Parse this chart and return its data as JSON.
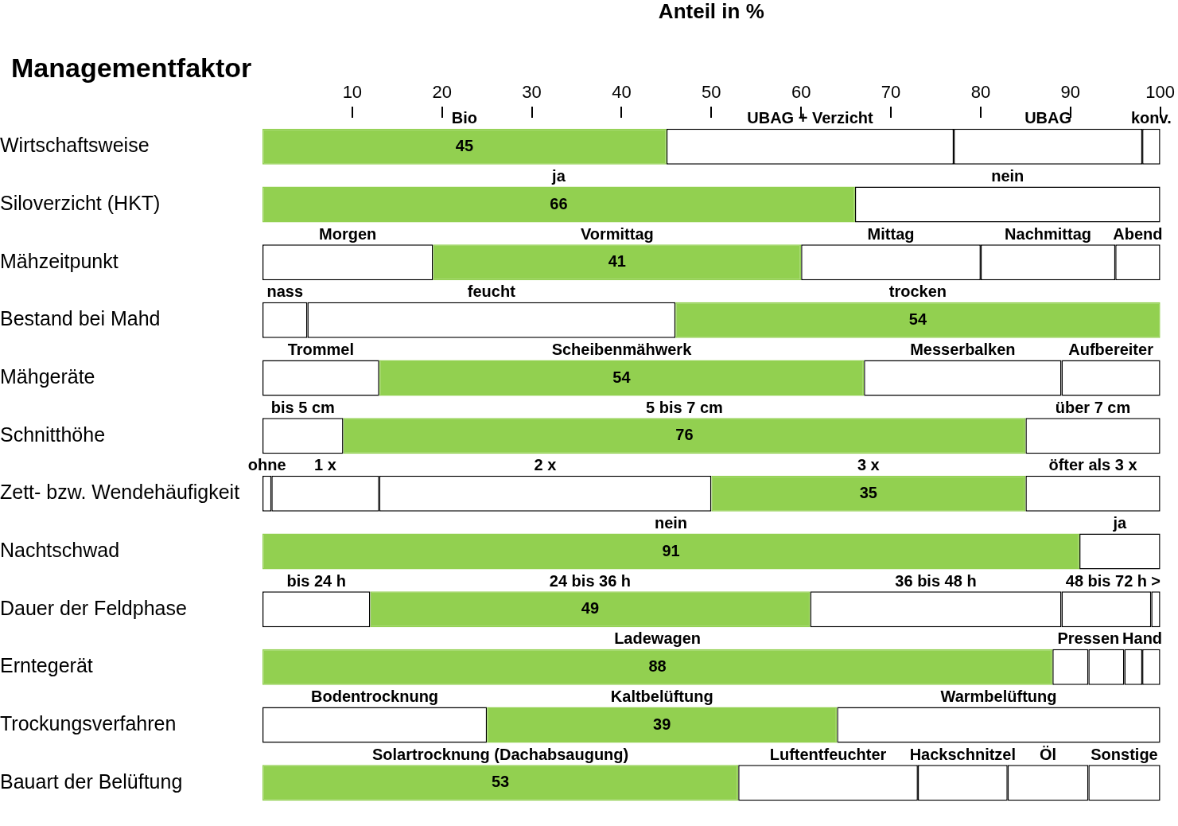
{
  "chart_data": {
    "type": "bar",
    "orientation": "horizontal",
    "stacked": true,
    "xlabel": "Anteil in %",
    "ylabel": "Managementfaktor",
    "categories": [
      "Wirtschaftsweise",
      "Siloverzicht (HKT)",
      "Mähzeitpunkt",
      "Bestand bei Mahd",
      "Mähgeräte",
      "Schnitthöhe",
      "Zett- bzw. Wendehäufigkeit",
      "Nachtschwad",
      "Dauer der Feldphase",
      "Erntegerät",
      "Trockungsverfahren",
      "Bauart der Belüftung"
    ],
    "xlim": [
      0,
      100
    ],
    "xticks": [
      10,
      20,
      30,
      40,
      50,
      60,
      70,
      80,
      90,
      100
    ],
    "series": [
      {
        "values": [
          45,
          66,
          19,
          5,
          13,
          9,
          1,
          91,
          12,
          88,
          25,
          53
        ],
        "colors": [
          "#92d050",
          "#92d050",
          "#ffffff",
          "#ffffff",
          "#ffffff",
          "#ffffff",
          "#ffffff",
          "#92d050",
          "#ffffff",
          "#92d050",
          "#ffffff",
          "#92d050"
        ],
        "value_labels": [
          "45",
          "66",
          null,
          null,
          null,
          null,
          null,
          "91",
          null,
          "88",
          null,
          "53"
        ]
      },
      {
        "values": [
          32,
          34,
          41,
          41,
          54,
          76,
          12,
          9,
          49,
          4,
          39,
          20
        ],
        "colors": [
          "#ffffff",
          "#ffffff",
          "#92d050",
          "#ffffff",
          "#92d050",
          "#92d050",
          "#ffffff",
          "#ffffff",
          "#92d050",
          "#ffffff",
          "#92d050",
          "#ffffff"
        ],
        "value_labels": [
          null,
          null,
          "41",
          null,
          "54",
          "76",
          null,
          null,
          "49",
          null,
          "39",
          null
        ]
      },
      {
        "values": [
          21,
          null,
          20,
          54,
          22,
          15,
          37,
          null,
          28,
          4,
          36,
          10
        ],
        "colors": [
          "#ffffff",
          null,
          "#ffffff",
          "#92d050",
          "#ffffff",
          "#ffffff",
          "#ffffff",
          null,
          "#ffffff",
          "#ffffff",
          "#ffffff",
          "#ffffff"
        ],
        "value_labels": [
          null,
          null,
          null,
          "54",
          null,
          null,
          null,
          null,
          null,
          null,
          null,
          null
        ]
      },
      {
        "values": [
          2,
          null,
          15,
          null,
          11,
          null,
          35,
          null,
          10,
          2,
          null,
          9
        ],
        "colors": [
          "#ffffff",
          null,
          "#ffffff",
          null,
          "#ffffff",
          null,
          "#92d050",
          null,
          "#ffffff",
          "#ffffff",
          null,
          "#ffffff"
        ],
        "value_labels": [
          null,
          null,
          null,
          null,
          null,
          null,
          "35",
          null,
          null,
          null,
          null,
          null
        ]
      },
      {
        "values": [
          null,
          null,
          5,
          null,
          null,
          null,
          15,
          null,
          1,
          2,
          null,
          8
        ],
        "colors": [
          null,
          null,
          "#ffffff",
          null,
          null,
          null,
          "#ffffff",
          null,
          "#ffffff",
          "#ffffff",
          null,
          "#ffffff"
        ]
      }
    ],
    "annotations": [
      "Bio",
      "UBAG + Verzicht",
      "UBAG",
      "konv.",
      "ja",
      "nein",
      "Morgen",
      "Vormittag",
      "Mittag",
      "Nachmittag",
      "Abend",
      "nass",
      "feucht",
      "trocken",
      "Trommel",
      "Scheibenmähwerk",
      "Messerbalken",
      "Aufbereiter",
      "bis 5 cm",
      "5 bis 7 cm",
      "über 7 cm",
      "ohne",
      "1 x",
      "2 x",
      "3 x",
      "öfter als 3 x",
      "nein",
      "ja",
      "bis 24 h",
      "24 bis 36 h",
      "36 bis 48 h",
      "48 bis 72 h",
      ">",
      "Ladewagen",
      "Pressen",
      "Hand",
      "Bodentrocknung",
      "Kaltbelüftung",
      "Warmbelüftung",
      "Solartrocknung (Dachabsaugung)",
      "Luftentfeuchter",
      "Hackschnitzel",
      "Öl",
      "Sonstige"
    ]
  }
}
